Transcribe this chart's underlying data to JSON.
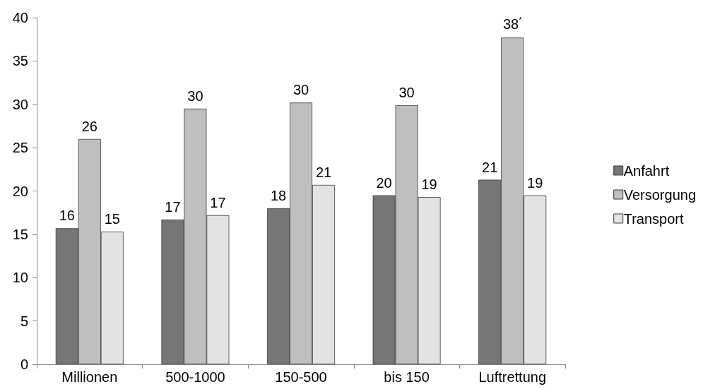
{
  "chart_data": {
    "type": "bar",
    "categories": [
      "Millionen",
      "500-1000",
      "150-500",
      "bis 150",
      "Luftrettung"
    ],
    "series": [
      {
        "name": "Anfahrt",
        "color": "#767676",
        "values": [
          15.7,
          16.7,
          18.0,
          19.5,
          21.3
        ],
        "value_labels": [
          "16",
          "17",
          "18",
          "20",
          "21"
        ]
      },
      {
        "name": "Versorgung",
        "color": "#bfbfbf",
        "values": [
          26.0,
          29.5,
          30.2,
          29.9,
          37.7
        ],
        "value_labels": [
          "26",
          "30",
          "30",
          "30",
          "38$^{*}$"
        ]
      },
      {
        "name": "Transport",
        "color": "#e3e3e3",
        "values": [
          15.3,
          17.2,
          20.7,
          19.3,
          19.5
        ],
        "value_labels": [
          "15",
          "17",
          "21",
          "19",
          "19"
        ]
      }
    ],
    "ylim": [
      0,
      40
    ],
    "yticks": [
      0,
      5,
      10,
      15,
      20,
      25,
      30,
      35,
      40
    ],
    "grid": false,
    "legend": "right"
  }
}
